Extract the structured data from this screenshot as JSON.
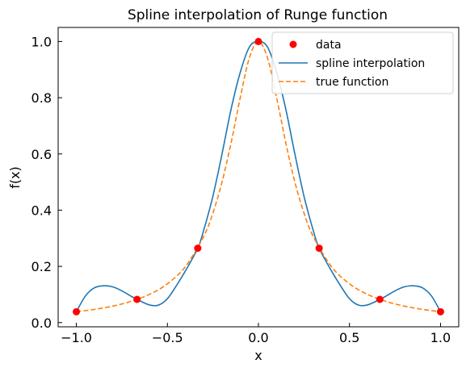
{
  "chart_data": {
    "type": "line",
    "title": "Spline interpolation of Runge function",
    "xlabel": "x",
    "ylabel": "f(x)",
    "xlim": [
      -1.1,
      1.1
    ],
    "ylim": [
      -0.015,
      1.05
    ],
    "xticks": [
      -1.0,
      -0.5,
      0.0,
      0.5,
      1.0
    ],
    "xtick_labels": [
      "−1.0",
      "−0.5",
      "0.0",
      "0.5",
      "1.0"
    ],
    "yticks": [
      0.0,
      0.2,
      0.4,
      0.6,
      0.8,
      1.0
    ],
    "ytick_labels": [
      "0.0",
      "0.2",
      "0.4",
      "0.6",
      "0.8",
      "1.0"
    ],
    "grid": false,
    "legend_position": "top-right",
    "colors": {
      "data": "#ff0000",
      "spline": "#1f77b4",
      "true_function": "#ff7f0e"
    },
    "series": [
      {
        "name": "data",
        "kind": "markers",
        "x": [
          -1.0,
          -0.6667,
          -0.3333,
          0.0,
          0.3333,
          0.6667,
          1.0
        ],
        "y": [
          0.0385,
          0.0826,
          0.2647,
          1.0,
          0.2647,
          0.0826,
          0.0385
        ]
      },
      {
        "name": "spline interpolation",
        "kind": "solid-line",
        "x": [
          -1.0,
          -0.95,
          -0.9,
          -0.85,
          -0.8,
          -0.75,
          -0.7,
          -0.6667,
          -0.6,
          -0.55,
          -0.5,
          -0.45,
          -0.4,
          -0.3333,
          -0.3,
          -0.25,
          -0.2,
          -0.15,
          -0.1,
          -0.05,
          0.0,
          0.05,
          0.1,
          0.15,
          0.2,
          0.25,
          0.3,
          0.3333,
          0.4,
          0.45,
          0.5,
          0.55,
          0.6,
          0.6667,
          0.7,
          0.75,
          0.8,
          0.85,
          0.9,
          0.95,
          1.0
        ],
        "y": [
          0.0385,
          0.095,
          0.124,
          0.131,
          0.127,
          0.113,
          0.094,
          0.0826,
          0.063,
          0.062,
          0.085,
          0.132,
          0.185,
          0.2647,
          0.33,
          0.45,
          0.6,
          0.76,
          0.89,
          0.98,
          1.0,
          0.98,
          0.89,
          0.76,
          0.6,
          0.45,
          0.33,
          0.2647,
          0.185,
          0.132,
          0.085,
          0.062,
          0.063,
          0.0826,
          0.094,
          0.113,
          0.127,
          0.131,
          0.124,
          0.095,
          0.0385
        ]
      },
      {
        "name": "true function",
        "kind": "dashed-line",
        "x": [
          -1.0,
          -0.9,
          -0.8,
          -0.7,
          -0.6,
          -0.5,
          -0.4,
          -0.3,
          -0.25,
          -0.2,
          -0.15,
          -0.1,
          -0.05,
          0.0,
          0.05,
          0.1,
          0.15,
          0.2,
          0.25,
          0.3,
          0.4,
          0.5,
          0.6,
          0.7,
          0.8,
          0.9,
          1.0
        ],
        "y": [
          0.0385,
          0.0471,
          0.0588,
          0.0755,
          0.1,
          0.1379,
          0.2,
          0.3077,
          0.3902,
          0.5,
          0.64,
          0.8,
          0.9412,
          1.0,
          0.9412,
          0.8,
          0.64,
          0.5,
          0.3902,
          0.3077,
          0.2,
          0.1379,
          0.1,
          0.0755,
          0.0588,
          0.0471,
          0.0385
        ]
      }
    ]
  }
}
